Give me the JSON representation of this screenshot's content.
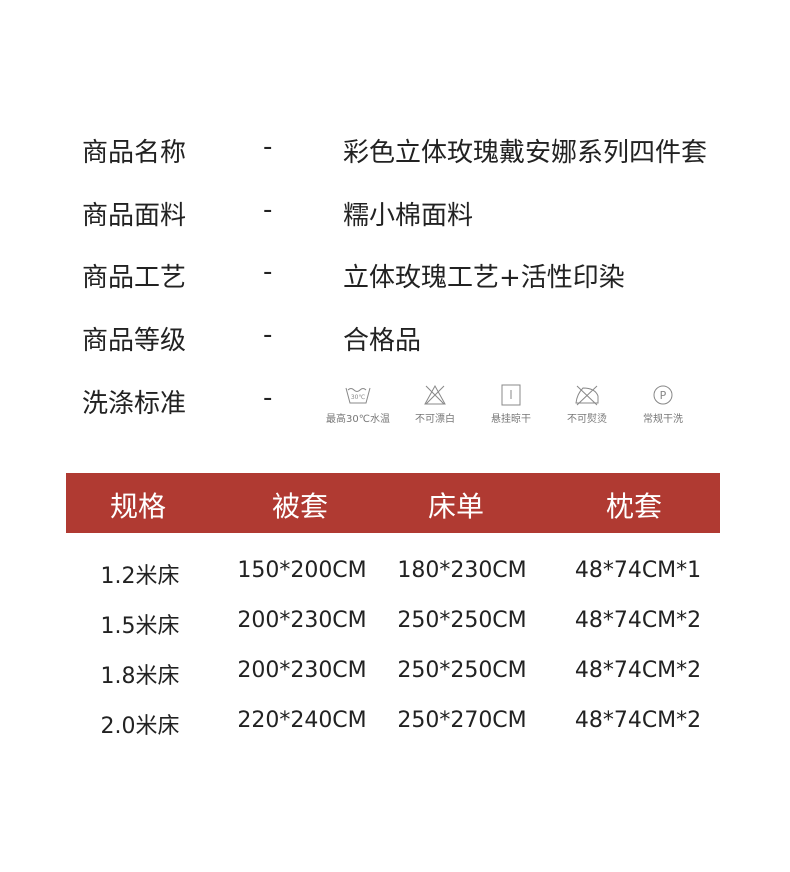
{
  "info": [
    {
      "label": "商品名称",
      "sep": "-",
      "value": "彩色立体玫瑰戴安娜系列四件套"
    },
    {
      "label": "商品面料",
      "sep": "-",
      "value": "糯小棉面料"
    },
    {
      "label": "商品工艺",
      "sep": "-",
      "value": "立体玫瑰工艺+活性印染"
    },
    {
      "label": "商品等级",
      "sep": "-",
      "value": "合格品"
    },
    {
      "label": "洗涤标准",
      "sep": "-"
    }
  ],
  "care": [
    {
      "icon": "wash-30-icon",
      "label": "最高30℃水温",
      "temp": "30℃"
    },
    {
      "icon": "no-bleach-icon",
      "label": "不可漂白"
    },
    {
      "icon": "hang-dry-icon",
      "label": "悬挂晾干"
    },
    {
      "icon": "no-iron-icon",
      "label": "不可熨烫"
    },
    {
      "icon": "dry-clean-icon",
      "label": "常规干洗",
      "letter": "P"
    }
  ],
  "table": {
    "header_color": "#b03a32",
    "headers": [
      "规格",
      "被套",
      "床单",
      "枕套"
    ],
    "rows": [
      [
        "1.2米床",
        "150*200CM",
        "180*230CM",
        "48*74CM*1"
      ],
      [
        "1.5米床",
        "200*230CM",
        "250*250CM",
        "48*74CM*2"
      ],
      [
        "1.8米床",
        "200*230CM",
        "250*250CM",
        "48*74CM*2"
      ],
      [
        "2.0米床",
        "220*240CM",
        "250*270CM",
        "48*74CM*2"
      ]
    ]
  }
}
